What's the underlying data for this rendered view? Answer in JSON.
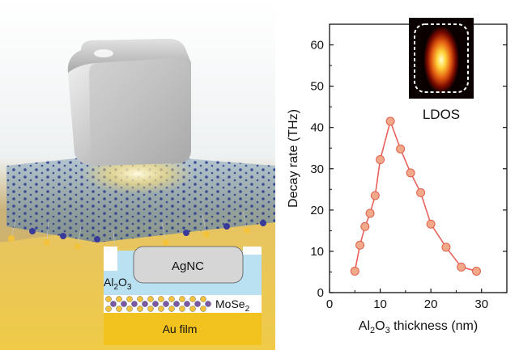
{
  "illustration": {
    "labels": {
      "agnc": "AgNC",
      "al2o3_main": "Al",
      "al2o3_sub": "2",
      "al2o3_main2": "O",
      "al2o3_sub2": "3",
      "mose2_main": "MoSe",
      "mose2_sub": "2",
      "au_film": "Au film"
    }
  },
  "chart_data": {
    "type": "line",
    "xlabel_main": "Al",
    "xlabel_sub1": "2",
    "xlabel_mid": "O",
    "xlabel_sub2": "3",
    "xlabel_tail": " thickness (nm)",
    "ylabel": "Decay rate (THz)",
    "xlim": [
      0,
      35
    ],
    "ylim": [
      0,
      65
    ],
    "xticks": [
      0,
      10,
      20,
      30
    ],
    "yticks": [
      0,
      10,
      20,
      30,
      40,
      50,
      60
    ],
    "series": [
      {
        "x": [
          5,
          6,
          7,
          8,
          9,
          10,
          12,
          14,
          16,
          18,
          20,
          23,
          26,
          29
        ],
        "y": [
          5.2,
          11.5,
          16.0,
          19.2,
          23.5,
          32.2,
          41.5,
          34.8,
          29.0,
          24.2,
          16.6,
          11.0,
          6.2,
          5.2
        ]
      }
    ],
    "line_color": "#e8615b",
    "marker_fill": "#f2a98a",
    "marker_stroke": "#e0604e",
    "inset_label": "LDOS"
  }
}
